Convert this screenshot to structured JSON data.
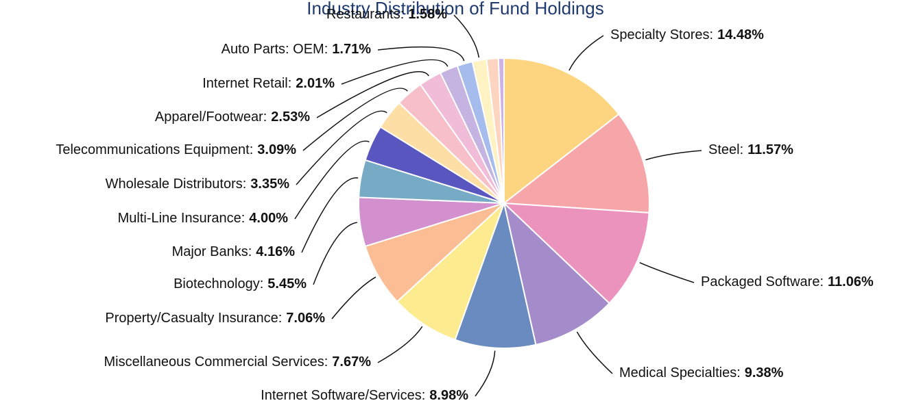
{
  "chart_data": {
    "type": "pie",
    "title": "Industry Distribution of Fund Holdings",
    "categories": [
      "Specialty Stores:",
      "Steel:",
      "Packaged Software:",
      "Medical Specialties:",
      "Internet Software/Services:",
      "Miscellaneous Commercial Services:",
      "Property/Casualty Insurance:",
      "Biotechnology:",
      "Major Banks:",
      "Multi-Line Insurance:",
      "Wholesale Distributors:",
      "Telecommunications Equipment:",
      "Apparel/Footwear:",
      "Internet Retail:",
      "Auto Parts: OEM:",
      "Restaurants:",
      null,
      null
    ],
    "values": [
      14.48,
      11.57,
      11.06,
      9.38,
      8.98,
      7.67,
      7.06,
      5.45,
      4.16,
      4.0,
      3.35,
      3.09,
      2.53,
      2.01,
      1.71,
      1.58,
      1.3,
      0.62
    ],
    "value_labels": [
      "14.48%",
      "11.57%",
      "11.06%",
      "9.38%",
      "8.98%",
      "7.67%",
      "7.06%",
      "5.45%",
      "4.16%",
      "4.00%",
      "3.35%",
      "3.09%",
      "2.53%",
      "2.01%",
      "1.71%",
      "1.58%",
      null,
      null
    ],
    "colors": [
      "#fdd580",
      "#f6a6a8",
      "#ec93bd",
      "#a48ccb",
      "#6a8bc0",
      "#fdeb8f",
      "#fbbd93",
      "#d290cf",
      "#77aac5",
      "#5a56c0",
      "#fddfa6",
      "#f7c0c8",
      "#f0bcd8",
      "#c5b3e1",
      "#a5bcec",
      "#fff3c4",
      "#fcd4c0",
      "#cdb2e6"
    ]
  }
}
